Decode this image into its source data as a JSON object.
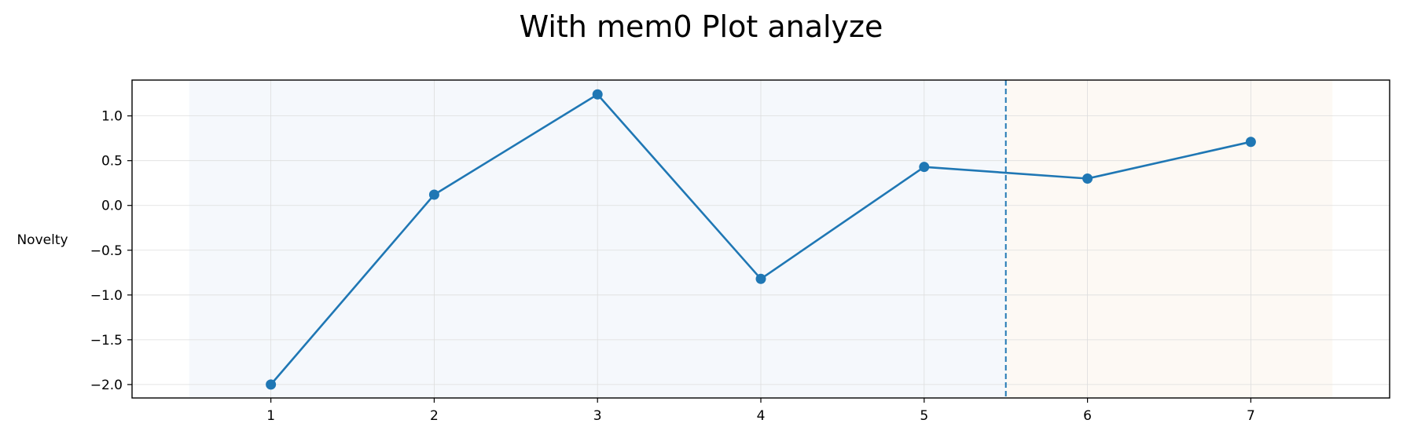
{
  "chart_data": {
    "type": "line",
    "title": "With mem0 Plot analyze",
    "xlabel": "",
    "ylabel": "Novelty",
    "x": [
      1,
      2,
      3,
      4,
      5,
      6,
      7
    ],
    "series": [
      {
        "values": [
          -2.0,
          0.12,
          1.24,
          -0.82,
          0.43,
          0.3,
          0.71
        ]
      }
    ],
    "xlim": [
      0.15,
      7.85
    ],
    "ylim": [
      -2.15,
      1.4
    ],
    "xticks": [
      1,
      2,
      3,
      4,
      5,
      6,
      7
    ],
    "yticks": [
      1.0,
      0.5,
      0.0,
      -0.5,
      -1.0,
      -1.5,
      -2.0
    ],
    "ytick_labels": [
      "1.0",
      "0.5",
      "0.0",
      "−0.5",
      "−1.0",
      "−1.5",
      "−2.0"
    ],
    "shaded_regions": [
      {
        "x_start": 0.5,
        "x_end": 5.5,
        "color": "#f5f8fc"
      },
      {
        "x_start": 5.5,
        "x_end": 7.5,
        "color": "#fdf9f4"
      }
    ],
    "vline": {
      "x": 5.5,
      "style": "dashed",
      "color": "#1f77b4"
    },
    "line_color": "#1f77b4",
    "grid": true,
    "legend": "none"
  }
}
